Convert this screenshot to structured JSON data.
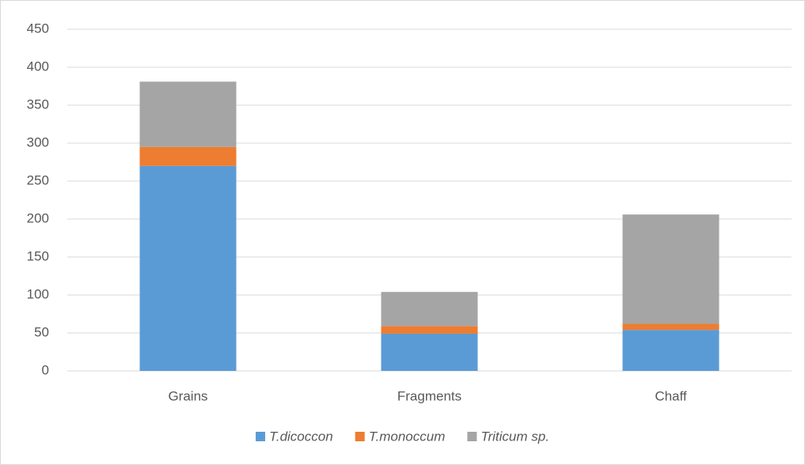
{
  "chart_data": {
    "type": "stacked_bar",
    "categories": [
      "Grains",
      "Fragments",
      "Chaff"
    ],
    "series": [
      {
        "name": "T.dicoccon",
        "color": "#5b9bd5",
        "values": [
          270,
          49,
          54
        ]
      },
      {
        "name": "T.monoccum",
        "color": "#ed7d31",
        "values": [
          25,
          10,
          8
        ]
      },
      {
        "name": "Triticum sp.",
        "color": "#a5a5a5",
        "values": [
          86,
          45,
          144
        ]
      }
    ],
    "ylim": [
      0,
      450
    ],
    "yticks": [
      0,
      50,
      100,
      150,
      200,
      250,
      300,
      350,
      400,
      450
    ],
    "grid": true,
    "legend": "bottom"
  }
}
